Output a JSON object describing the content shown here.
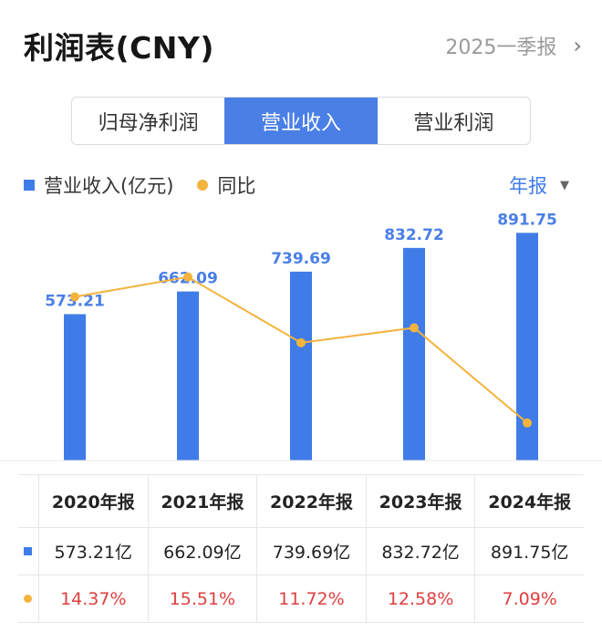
{
  "header": {
    "title": "利润表(CNY)",
    "period_label": "2025一季报",
    "chevron": "›"
  },
  "tabs": [
    {
      "label": "归母净利润",
      "active": false
    },
    {
      "label": "营业收入",
      "active": true
    },
    {
      "label": "营业利润",
      "active": false
    }
  ],
  "legend": {
    "bar_label": "营业收入(亿元)",
    "line_label": "同比"
  },
  "frequency": {
    "label": "年报",
    "arrow": "▼"
  },
  "colors": {
    "bar": "#3f7ce8",
    "line": "#f3b33d",
    "bar_label": "#4a7fe6",
    "yoy": "#e03e3e",
    "tab_active": "#4a7fe6"
  },
  "chart_data": {
    "type": "bar",
    "categories": [
      "2020年报",
      "2021年报",
      "2022年报",
      "2023年报",
      "2024年报"
    ],
    "series": [
      {
        "name": "营业收入(亿元)",
        "type": "bar",
        "values": [
          573.21,
          662.09,
          739.69,
          832.72,
          891.75
        ],
        "labels": [
          "573.21",
          "662.09",
          "739.69",
          "832.72",
          "891.75"
        ]
      },
      {
        "name": "同比",
        "type": "line",
        "values": [
          14.37,
          15.51,
          11.72,
          12.58,
          7.09
        ]
      }
    ],
    "legend_position": "top-left",
    "grid": false
  },
  "table": {
    "headers": [
      "2020年报",
      "2021年报",
      "2022年报",
      "2023年报",
      "2024年报"
    ],
    "revenue": [
      "573.21亿",
      "662.09亿",
      "739.69亿",
      "832.72亿",
      "891.75亿"
    ],
    "yoy": [
      "14.37%",
      "15.51%",
      "11.72%",
      "12.58%",
      "7.09%"
    ]
  }
}
